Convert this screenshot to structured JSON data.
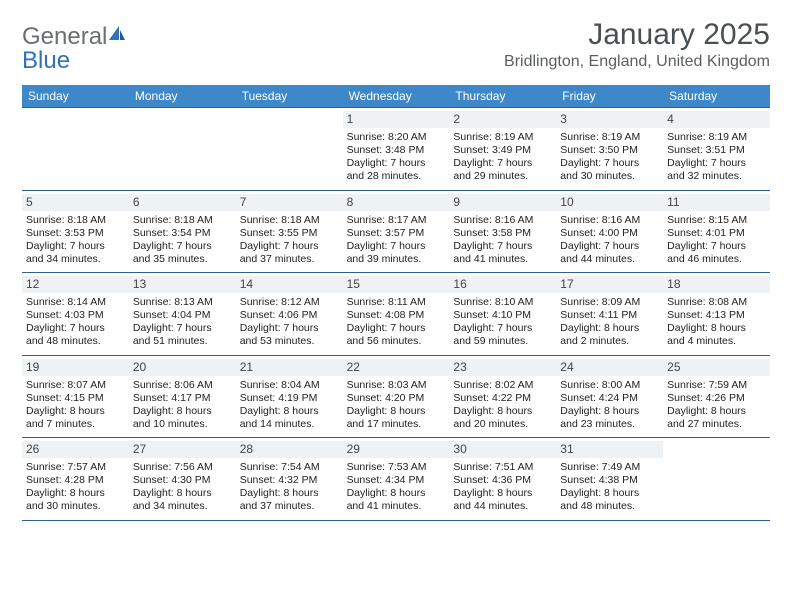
{
  "brand": {
    "text1": "General",
    "text2": "Blue"
  },
  "title": "January 2025",
  "location": "Bridlington, England, United Kingdom",
  "colors": {
    "header_bg": "#3e88c9",
    "header_text": "#ffffff",
    "row_border": "#2f5e8f",
    "daynum_bg": "#eef2f5",
    "brand_gray": "#6a6f74",
    "brand_blue": "#2f73b8",
    "title_color": "#4a4f54",
    "page_bg": "#ffffff"
  },
  "typography": {
    "month_title_pt": 30,
    "location_pt": 16,
    "dow_pt": 12,
    "daynum_pt": 12,
    "body_pt": 10.5,
    "logo_pt": 24
  },
  "days_of_week": [
    "Sunday",
    "Monday",
    "Tuesday",
    "Wednesday",
    "Thursday",
    "Friday",
    "Saturday"
  ],
  "weeks": [
    [
      null,
      null,
      null,
      {
        "n": "1",
        "sunrise": "8:20 AM",
        "sunset": "3:48 PM",
        "daylight": "7 hours and 28 minutes."
      },
      {
        "n": "2",
        "sunrise": "8:19 AM",
        "sunset": "3:49 PM",
        "daylight": "7 hours and 29 minutes."
      },
      {
        "n": "3",
        "sunrise": "8:19 AM",
        "sunset": "3:50 PM",
        "daylight": "7 hours and 30 minutes."
      },
      {
        "n": "4",
        "sunrise": "8:19 AM",
        "sunset": "3:51 PM",
        "daylight": "7 hours and 32 minutes."
      }
    ],
    [
      {
        "n": "5",
        "sunrise": "8:18 AM",
        "sunset": "3:53 PM",
        "daylight": "7 hours and 34 minutes."
      },
      {
        "n": "6",
        "sunrise": "8:18 AM",
        "sunset": "3:54 PM",
        "daylight": "7 hours and 35 minutes."
      },
      {
        "n": "7",
        "sunrise": "8:18 AM",
        "sunset": "3:55 PM",
        "daylight": "7 hours and 37 minutes."
      },
      {
        "n": "8",
        "sunrise": "8:17 AM",
        "sunset": "3:57 PM",
        "daylight": "7 hours and 39 minutes."
      },
      {
        "n": "9",
        "sunrise": "8:16 AM",
        "sunset": "3:58 PM",
        "daylight": "7 hours and 41 minutes."
      },
      {
        "n": "10",
        "sunrise": "8:16 AM",
        "sunset": "4:00 PM",
        "daylight": "7 hours and 44 minutes."
      },
      {
        "n": "11",
        "sunrise": "8:15 AM",
        "sunset": "4:01 PM",
        "daylight": "7 hours and 46 minutes."
      }
    ],
    [
      {
        "n": "12",
        "sunrise": "8:14 AM",
        "sunset": "4:03 PM",
        "daylight": "7 hours and 48 minutes."
      },
      {
        "n": "13",
        "sunrise": "8:13 AM",
        "sunset": "4:04 PM",
        "daylight": "7 hours and 51 minutes."
      },
      {
        "n": "14",
        "sunrise": "8:12 AM",
        "sunset": "4:06 PM",
        "daylight": "7 hours and 53 minutes."
      },
      {
        "n": "15",
        "sunrise": "8:11 AM",
        "sunset": "4:08 PM",
        "daylight": "7 hours and 56 minutes."
      },
      {
        "n": "16",
        "sunrise": "8:10 AM",
        "sunset": "4:10 PM",
        "daylight": "7 hours and 59 minutes."
      },
      {
        "n": "17",
        "sunrise": "8:09 AM",
        "sunset": "4:11 PM",
        "daylight": "8 hours and 2 minutes."
      },
      {
        "n": "18",
        "sunrise": "8:08 AM",
        "sunset": "4:13 PM",
        "daylight": "8 hours and 4 minutes."
      }
    ],
    [
      {
        "n": "19",
        "sunrise": "8:07 AM",
        "sunset": "4:15 PM",
        "daylight": "8 hours and 7 minutes."
      },
      {
        "n": "20",
        "sunrise": "8:06 AM",
        "sunset": "4:17 PM",
        "daylight": "8 hours and 10 minutes."
      },
      {
        "n": "21",
        "sunrise": "8:04 AM",
        "sunset": "4:19 PM",
        "daylight": "8 hours and 14 minutes."
      },
      {
        "n": "22",
        "sunrise": "8:03 AM",
        "sunset": "4:20 PM",
        "daylight": "8 hours and 17 minutes."
      },
      {
        "n": "23",
        "sunrise": "8:02 AM",
        "sunset": "4:22 PM",
        "daylight": "8 hours and 20 minutes."
      },
      {
        "n": "24",
        "sunrise": "8:00 AM",
        "sunset": "4:24 PM",
        "daylight": "8 hours and 23 minutes."
      },
      {
        "n": "25",
        "sunrise": "7:59 AM",
        "sunset": "4:26 PM",
        "daylight": "8 hours and 27 minutes."
      }
    ],
    [
      {
        "n": "26",
        "sunrise": "7:57 AM",
        "sunset": "4:28 PM",
        "daylight": "8 hours and 30 minutes."
      },
      {
        "n": "27",
        "sunrise": "7:56 AM",
        "sunset": "4:30 PM",
        "daylight": "8 hours and 34 minutes."
      },
      {
        "n": "28",
        "sunrise": "7:54 AM",
        "sunset": "4:32 PM",
        "daylight": "8 hours and 37 minutes."
      },
      {
        "n": "29",
        "sunrise": "7:53 AM",
        "sunset": "4:34 PM",
        "daylight": "8 hours and 41 minutes."
      },
      {
        "n": "30",
        "sunrise": "7:51 AM",
        "sunset": "4:36 PM",
        "daylight": "8 hours and 44 minutes."
      },
      {
        "n": "31",
        "sunrise": "7:49 AM",
        "sunset": "4:38 PM",
        "daylight": "8 hours and 48 minutes."
      },
      null
    ]
  ],
  "labels": {
    "sunrise": "Sunrise: ",
    "sunset": "Sunset: ",
    "daylight": "Daylight: "
  }
}
